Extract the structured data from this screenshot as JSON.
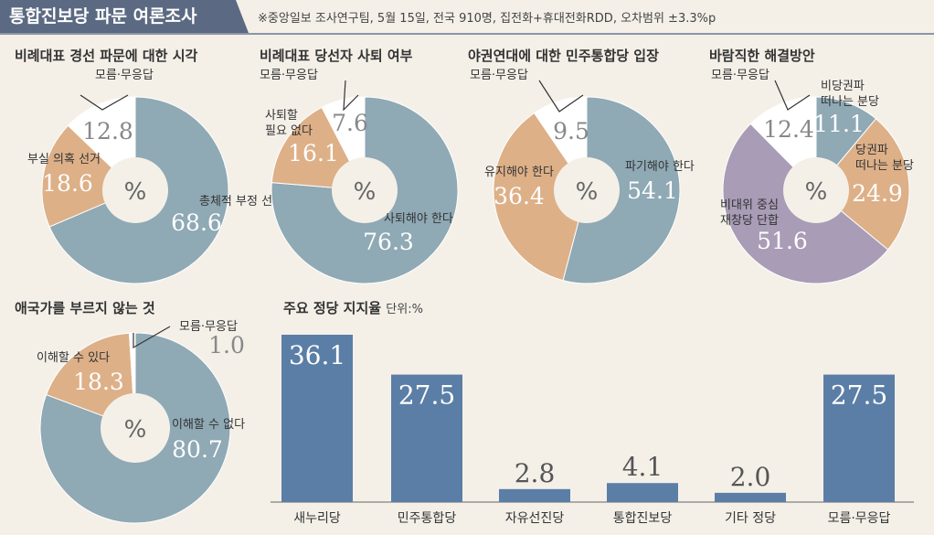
{
  "header": {
    "title": "통합진보당 파문 여론조사",
    "subtitle": "※중앙일보 조사연구팀, 5월 15일, 전국 910명, 집전화+휴대전화RDD, 오차범위 ±3.3%p"
  },
  "colors": {
    "blue": "#8fa9b5",
    "tan": "#ddb088",
    "white": "#ffffff",
    "purple": "#a89cb6",
    "bar": "#5b7ea6"
  },
  "chart_data": [
    {
      "type": "pie",
      "title": "비례대표 경선 파문에 대한 시각",
      "center": "%",
      "slices": [
        {
          "label": "총체적 부정 선거",
          "value": 68.6
        },
        {
          "label": "부실 의혹 선거",
          "value": 18.6
        },
        {
          "label": "모름·무응답",
          "value": 12.8
        }
      ]
    },
    {
      "type": "pie",
      "title": "비례대표 당선자 사퇴 여부",
      "center": "%",
      "slices": [
        {
          "label": "사퇴해야 한다",
          "value": 76.3
        },
        {
          "label": "사퇴할 필요 없다",
          "value": 16.1
        },
        {
          "label": "모름·무응답",
          "value": 7.6
        }
      ]
    },
    {
      "type": "pie",
      "title": "야권연대에 대한 민주통합당 입장",
      "center": "%",
      "slices": [
        {
          "label": "파기해야 한다",
          "value": 54.1
        },
        {
          "label": "유지해야 한다",
          "value": 36.4
        },
        {
          "label": "모름·무응답",
          "value": 9.5
        }
      ]
    },
    {
      "type": "pie",
      "title": "바람직한 해결방안",
      "center": "%",
      "slices": [
        {
          "label": "비당권파 떠나는 분당",
          "value": 11.1
        },
        {
          "label": "당권파 떠나는 분당",
          "value": 24.9
        },
        {
          "label": "비대위 중심 재창당 단합",
          "value": 51.6
        },
        {
          "label": "모름·무응답",
          "value": 12.4
        }
      ]
    },
    {
      "type": "pie",
      "title": "애국가를 부르지 않는 것",
      "center": "%",
      "slices": [
        {
          "label": "이해할 수 없다",
          "value": 80.7
        },
        {
          "label": "이해할 수 있다",
          "value": 18.3
        },
        {
          "label": "모름·무응답",
          "value": 1.0
        }
      ]
    },
    {
      "type": "bar",
      "title": "주요 정당 지지율",
      "unit": "단위:%",
      "categories": [
        "새누리당",
        "민주통합당",
        "자유선진당",
        "통합진보당",
        "기타 정당",
        "모름·무응답"
      ],
      "values": [
        36.1,
        27.5,
        2.8,
        4.1,
        2.0,
        27.5
      ],
      "ylim": [
        0,
        36.1
      ]
    }
  ]
}
